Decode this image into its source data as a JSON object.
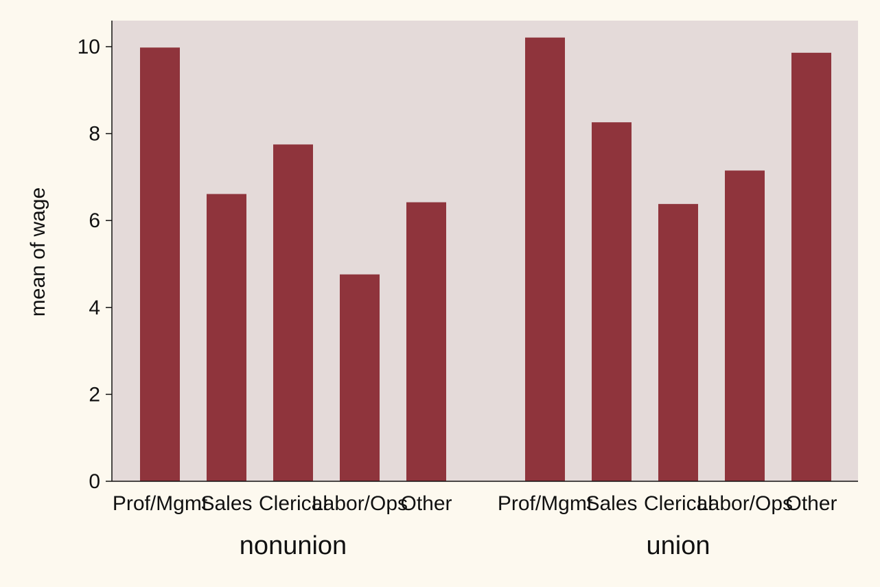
{
  "chart_data": {
    "type": "bar",
    "ylabel": "mean of wage",
    "ylim": [
      0,
      10.6
    ],
    "yticks": [
      0,
      2,
      4,
      6,
      8,
      10
    ],
    "grid": false,
    "legend": "none",
    "groups": [
      {
        "name": "nonunion",
        "categories": [
          "Prof/Mgmt",
          "Sales",
          "Clerical",
          "Labor/Ops",
          "Other"
        ],
        "values": [
          9.98,
          6.61,
          7.75,
          4.76,
          6.42
        ]
      },
      {
        "name": "union",
        "categories": [
          "Prof/Mgmt",
          "Sales",
          "Clerical",
          "Labor/Ops",
          "Other"
        ],
        "values": [
          10.21,
          8.26,
          6.38,
          7.15,
          9.86
        ]
      }
    ]
  },
  "colors": {
    "page_background": "#fdf9ef",
    "plot_background": "#e4dad9",
    "bar": "#8f343c",
    "axis": "#111111"
  }
}
